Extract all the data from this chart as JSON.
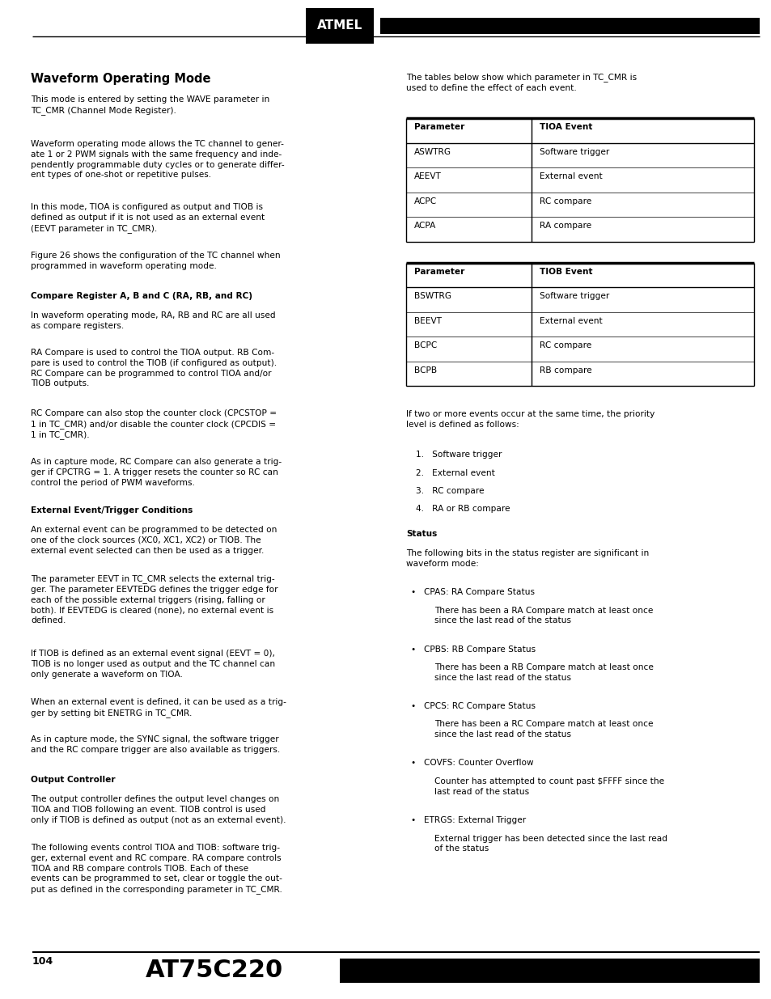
{
  "page_width": 9.54,
  "page_height": 12.35,
  "bg_color": "#ffffff",
  "footer_page_num": "104",
  "footer_chip": "AT75C220",
  "table1_header": [
    "Parameter",
    "TIOA Event"
  ],
  "table1_rows": [
    [
      "ASWTRG",
      "Software trigger"
    ],
    [
      "AEEVT",
      "External event"
    ],
    [
      "ACPC",
      "RC compare"
    ],
    [
      "ACPA",
      "RA compare"
    ]
  ],
  "table2_header": [
    "Parameter",
    "TIOB Event"
  ],
  "table2_rows": [
    [
      "BSWTRG",
      "Software trigger"
    ],
    [
      "BEEVT",
      "External event"
    ],
    [
      "BCPC",
      "RC compare"
    ],
    [
      "BCPB",
      "RB compare"
    ]
  ],
  "priority_items": [
    "1.   Software trigger",
    "2.   External event",
    "3.   RC compare",
    "4.   RA or RB compare"
  ],
  "status_items": [
    {
      "bullet": "CPAS: RA Compare Status",
      "detail": "There has been a RA Compare match at least once\nsince the last read of the status"
    },
    {
      "bullet": "CPBS: RB Compare Status",
      "detail": "There has been a RB Compare match at least once\nsince the last read of the status"
    },
    {
      "bullet": "CPCS: RC Compare Status",
      "detail": "There has been a RC Compare match at least once\nsince the last read of the status"
    },
    {
      "bullet": "COVFS: Counter Overflow",
      "detail": "Counter has attempted to count past $FFFF since the\nlast read of the status"
    },
    {
      "bullet": "ETRGS: External Trigger",
      "detail": "External trigger has been detected since the last read\nof the status"
    }
  ]
}
